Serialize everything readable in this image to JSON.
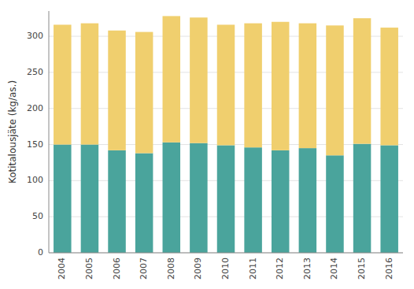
{
  "chart_data": {
    "type": "bar",
    "stacked": true,
    "grid": true,
    "ylabel": "Kotitalousjäte (kg/as.)",
    "categories": [
      "2004",
      "2005",
      "2006",
      "2007",
      "2008",
      "2009",
      "2010",
      "2011",
      "2012",
      "2013",
      "2014",
      "2015",
      "2016"
    ],
    "series": [
      {
        "color": "#4aa49c",
        "values": [
          150,
          150,
          142,
          138,
          153,
          152,
          149,
          146,
          142,
          145,
          135,
          151,
          149
        ]
      },
      {
        "color": "#f0cf6e",
        "values": [
          166,
          168,
          166,
          168,
          175,
          174,
          167,
          172,
          178,
          173,
          180,
          174,
          163
        ]
      }
    ],
    "ylim": [
      0,
      335
    ],
    "yticks": [
      0,
      50,
      100,
      150,
      200,
      250,
      300
    ]
  }
}
